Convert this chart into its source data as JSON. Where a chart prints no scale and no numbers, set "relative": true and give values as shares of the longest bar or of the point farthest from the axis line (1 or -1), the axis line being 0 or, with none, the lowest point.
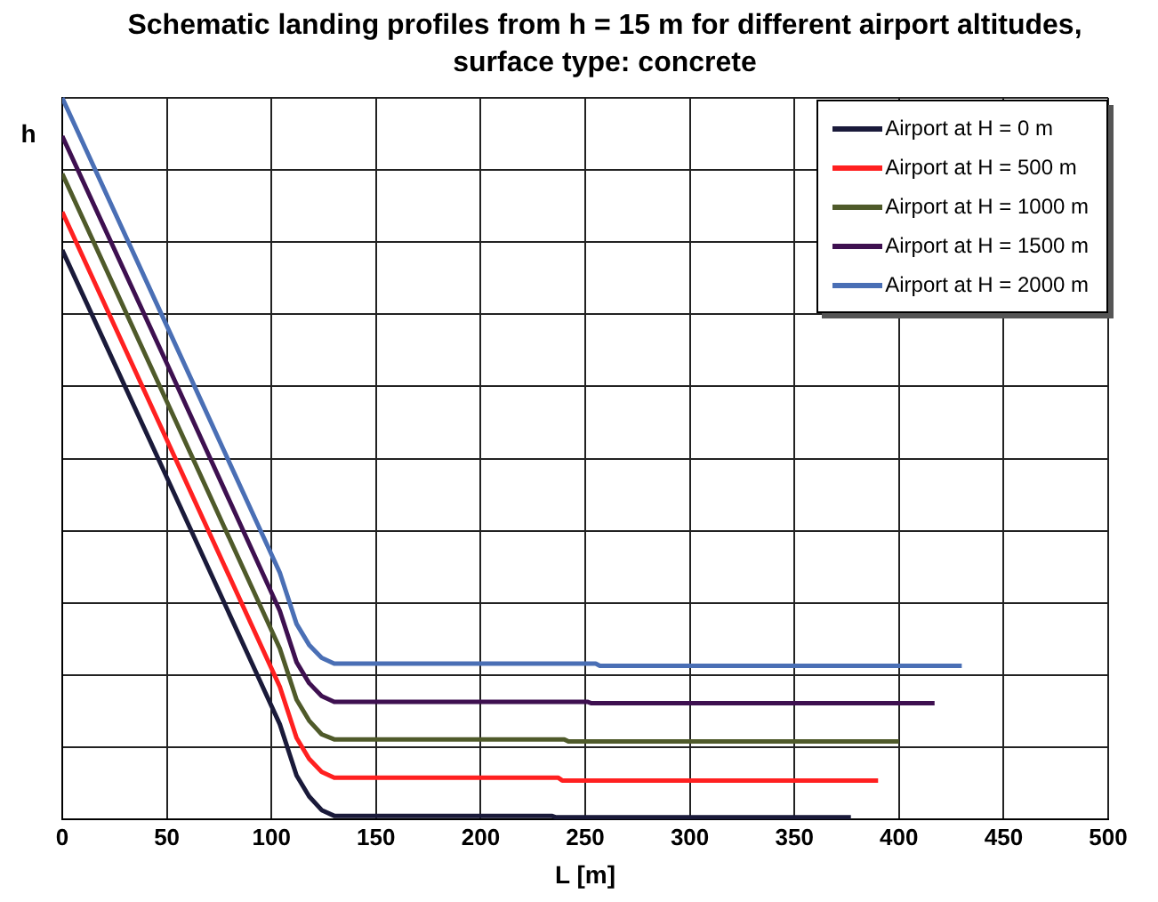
{
  "chart_data": {
    "type": "line",
    "title": "Schematic landing profiles from h = 15 m for different airport altitudes, surface type: concrete",
    "xlabel": "L [m]",
    "ylabel": "h",
    "relative": true,
    "xlim": [
      0,
      500
    ],
    "xticks": [
      0,
      50,
      100,
      150,
      200,
      250,
      300,
      350,
      400,
      450,
      500
    ],
    "grid": true,
    "legend": "top right",
    "marker": "none",
    "line_style": "solid",
    "series": [
      {
        "name": "Airport at H = 0 m",
        "color": "#1a1a3a",
        "x": [
          0,
          50,
          104,
          112,
          118,
          124,
          130,
          234,
          236,
          377
        ],
        "values": [
          0.789,
          0.474,
          0.132,
          0.061,
          0.032,
          0.013,
          0.005,
          0.005,
          0.003,
          0.003
        ]
      },
      {
        "name": "Airport at H = 500 m",
        "color": "#ff2020",
        "x": [
          0,
          50,
          104,
          112,
          118,
          124,
          130,
          237,
          239,
          390
        ],
        "values": [
          0.842,
          0.526,
          0.184,
          0.113,
          0.084,
          0.066,
          0.058,
          0.058,
          0.054,
          0.054
        ]
      },
      {
        "name": "Airport at H = 1000 m",
        "color": "#4f5a2a",
        "x": [
          0,
          50,
          104,
          112,
          118,
          124,
          130,
          240,
          242,
          400
        ],
        "values": [
          0.895,
          0.579,
          0.237,
          0.166,
          0.137,
          0.118,
          0.111,
          0.111,
          0.108,
          0.108
        ]
      },
      {
        "name": "Airport at H = 1500 m",
        "color": "#3e1050",
        "x": [
          0,
          50,
          104,
          112,
          118,
          124,
          130,
          251,
          253,
          417
        ],
        "values": [
          0.947,
          0.632,
          0.289,
          0.218,
          0.189,
          0.171,
          0.163,
          0.163,
          0.161,
          0.161
        ]
      },
      {
        "name": "Airport at H = 2000 m",
        "color": "#4a6fb5",
        "x": [
          0,
          50,
          104,
          112,
          118,
          124,
          130,
          255,
          257,
          430
        ],
        "values": [
          1,
          0.684,
          0.342,
          0.271,
          0.242,
          0.224,
          0.216,
          0.216,
          0.213,
          0.213
        ]
      }
    ]
  }
}
